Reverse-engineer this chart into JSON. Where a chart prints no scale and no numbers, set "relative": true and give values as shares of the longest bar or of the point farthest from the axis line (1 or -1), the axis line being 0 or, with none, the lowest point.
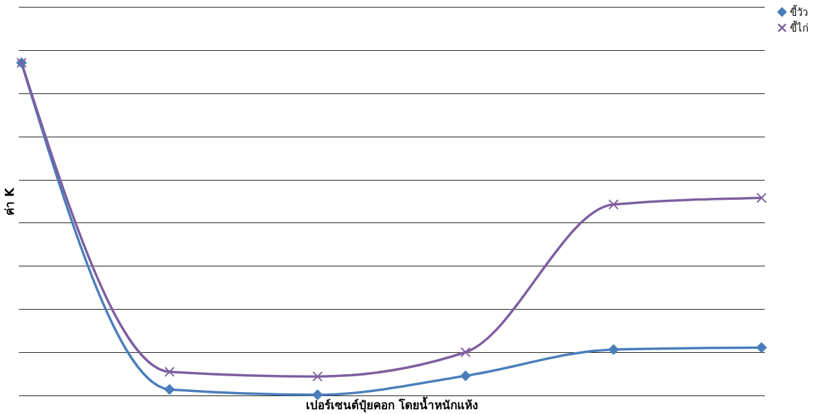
{
  "chart_data": {
    "type": "line",
    "xlabel": "เปอร์เซนต์ปุ๋ยคอก โดยน้ำหนักแห้ง",
    "ylabel": "ค่า K",
    "relative": true,
    "grid": "y",
    "legend": "right",
    "line_style": "solid",
    "categories": [
      null,
      null,
      null,
      null,
      null,
      null
    ],
    "series": [
      {
        "name": "ขี้วัว",
        "color": "#4a7ebb",
        "marker": "diamond",
        "values": [
          1,
          0.018,
          0.002,
          0.059,
          0.138,
          0.144
        ]
      },
      {
        "name": "ขี้ไก่",
        "color": "#7d5fa0",
        "marker": "cross",
        "values": [
          1,
          0.071,
          0.057,
          0.13,
          0.574,
          0.594
        ]
      }
    ]
  }
}
